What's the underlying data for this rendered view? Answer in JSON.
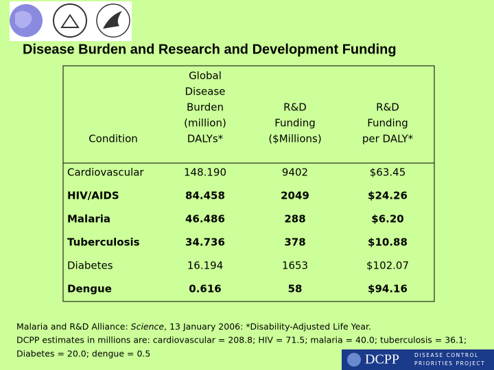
{
  "title": "Disease Burden and Research and Development Funding",
  "table": {
    "header": [
      [
        "Condition"
      ],
      [
        "Global",
        "Disease",
        "Burden",
        "(million)",
        "DALYs*"
      ],
      [
        "R&D",
        "Funding",
        "($Millions)"
      ],
      [
        "R&D",
        "Funding",
        "per DALY*"
      ]
    ],
    "rows": [
      {
        "cells": [
          "Cardiovascular",
          "148.190",
          "9402",
          "$63.45"
        ],
        "bold": false
      },
      {
        "cells": [
          "HIV/AIDS",
          "84.458",
          "2049",
          "$24.26"
        ],
        "bold": true
      },
      {
        "cells": [
          "Malaria",
          "46.486",
          "288",
          "$6.20"
        ],
        "bold": true
      },
      {
        "cells": [
          "Tuberculosis",
          "34.736",
          "378",
          "$10.88"
        ],
        "bold": true
      },
      {
        "cells": [
          "Diabetes",
          "16.194",
          "1653",
          "$102.07"
        ],
        "bold": false
      },
      {
        "cells": [
          "Dengue",
          "0.616",
          "58",
          "$94.16"
        ],
        "bold": true
      }
    ]
  },
  "footnote": {
    "line1": [
      "Malaria and R&D Alliance: ",
      "Science",
      ", 13 January 2006: *Disability-Adjusted Life Year."
    ],
    "line2": "DCPP estimates in millions are: cardiovascular = 208.8; HIV = 71.5; malaria = 40.0; tuberculosis = 36.1;",
    "line3": "Diabetes = 20.0; dengue = 0.5"
  },
  "logo": {
    "name": "DCPP",
    "tagline": [
      "DISEASE CONTROL",
      "PRIORITIES PROJECT"
    ]
  }
}
